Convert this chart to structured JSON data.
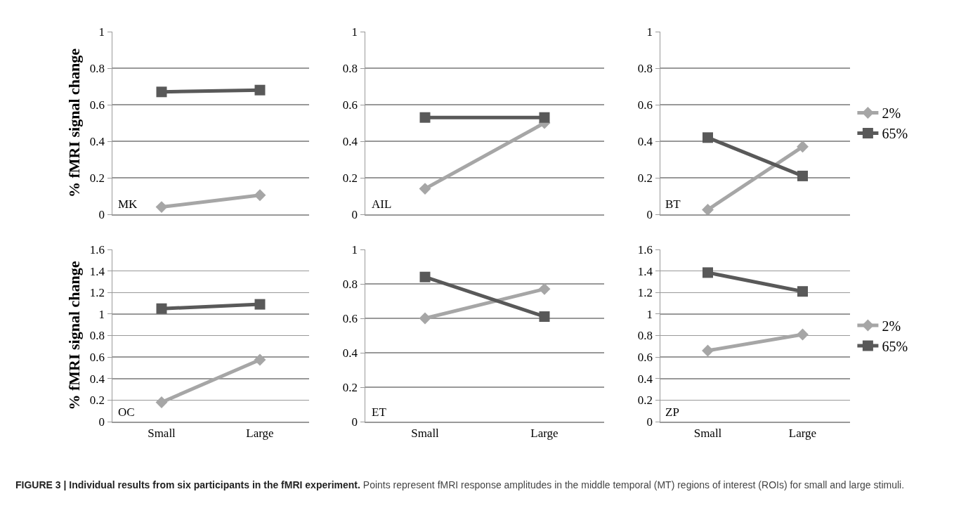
{
  "chart_data": [
    {
      "type": "line",
      "ylabel": "% fMRI signal change",
      "categories": [
        null,
        null
      ],
      "ylim": [
        0,
        1
      ],
      "yticks": [
        0,
        0.2,
        0.4,
        0.6,
        0.8,
        1
      ],
      "grid": "y",
      "legend": false,
      "tick_labels": "y",
      "annotations": [
        "MK"
      ],
      "series": [
        {
          "color": "#a6a6a6",
          "marker": "diamond",
          "values": [
            0.04,
            0.105
          ]
        },
        {
          "color": "#595959",
          "marker": "square",
          "values": [
            0.67,
            0.68
          ]
        }
      ]
    },
    {
      "type": "line",
      "categories": [
        null,
        null
      ],
      "ylim": [
        0,
        1
      ],
      "yticks": [
        0,
        0.2,
        0.4,
        0.6,
        0.8,
        1
      ],
      "grid": "y",
      "legend": false,
      "tick_labels": "y",
      "annotations": [
        "AIL"
      ],
      "series": [
        {
          "color": "#a6a6a6",
          "marker": "diamond",
          "values": [
            0.14,
            0.5
          ]
        },
        {
          "color": "#595959",
          "marker": "square",
          "values": [
            0.53,
            0.53
          ]
        }
      ]
    },
    {
      "type": "line",
      "categories": [
        null,
        null
      ],
      "ylim": [
        0,
        1
      ],
      "yticks": [
        0,
        0.2,
        0.4,
        0.6,
        0.8,
        1
      ],
      "grid": "y",
      "legend": "right",
      "tick_labels": "y",
      "annotations": [
        "BT"
      ],
      "series": [
        {
          "name": "2%",
          "color": "#a6a6a6",
          "marker": "diamond",
          "values": [
            0.025,
            0.37
          ]
        },
        {
          "name": "65%",
          "color": "#595959",
          "marker": "square",
          "values": [
            0.42,
            0.21
          ]
        }
      ]
    },
    {
      "type": "line",
      "ylabel": "% fMRI signal change",
      "categories": [
        "Small",
        "Large"
      ],
      "ylim": [
        0,
        1.6
      ],
      "yticks": [
        0,
        0.2,
        0.4,
        0.6,
        0.8,
        1,
        1.2,
        1.4,
        1.6
      ],
      "grid": "y",
      "legend": false,
      "annotations": [
        "OC"
      ],
      "series": [
        {
          "color": "#a6a6a6",
          "marker": "diamond",
          "values": [
            0.18,
            0.575
          ]
        },
        {
          "color": "#595959",
          "marker": "square",
          "values": [
            1.05,
            1.09
          ]
        }
      ]
    },
    {
      "type": "line",
      "categories": [
        "Small",
        "Large"
      ],
      "ylim": [
        0,
        1
      ],
      "yticks": [
        0,
        0.2,
        0.4,
        0.6,
        0.8,
        1
      ],
      "grid": "y",
      "legend": false,
      "annotations": [
        "ET"
      ],
      "series": [
        {
          "color": "#a6a6a6",
          "marker": "diamond",
          "values": [
            0.6,
            0.77
          ]
        },
        {
          "color": "#595959",
          "marker": "square",
          "values": [
            0.84,
            0.61
          ]
        }
      ]
    },
    {
      "type": "line",
      "categories": [
        "Small",
        "Large"
      ],
      "ylim": [
        0,
        1.6
      ],
      "yticks": [
        0,
        0.2,
        0.4,
        0.6,
        0.8,
        1,
        1.2,
        1.4,
        1.6
      ],
      "grid": "y",
      "legend": "right",
      "annotations": [
        "ZP"
      ],
      "series": [
        {
          "name": "2%",
          "color": "#a6a6a6",
          "marker": "diamond",
          "values": [
            0.66,
            0.81
          ]
        },
        {
          "name": "65%",
          "color": "#595959",
          "marker": "square",
          "values": [
            1.385,
            1.21
          ]
        }
      ]
    },
    {
      "type": "other",
      "annotations": [
        "FIGURE 3 | Individual results from six participants in the fMRI experiment.",
        "Points represent fMRI response amplitudes in the middle temporal (MT) regions of interest (ROIs) for small and large stimuli."
      ]
    }
  ]
}
